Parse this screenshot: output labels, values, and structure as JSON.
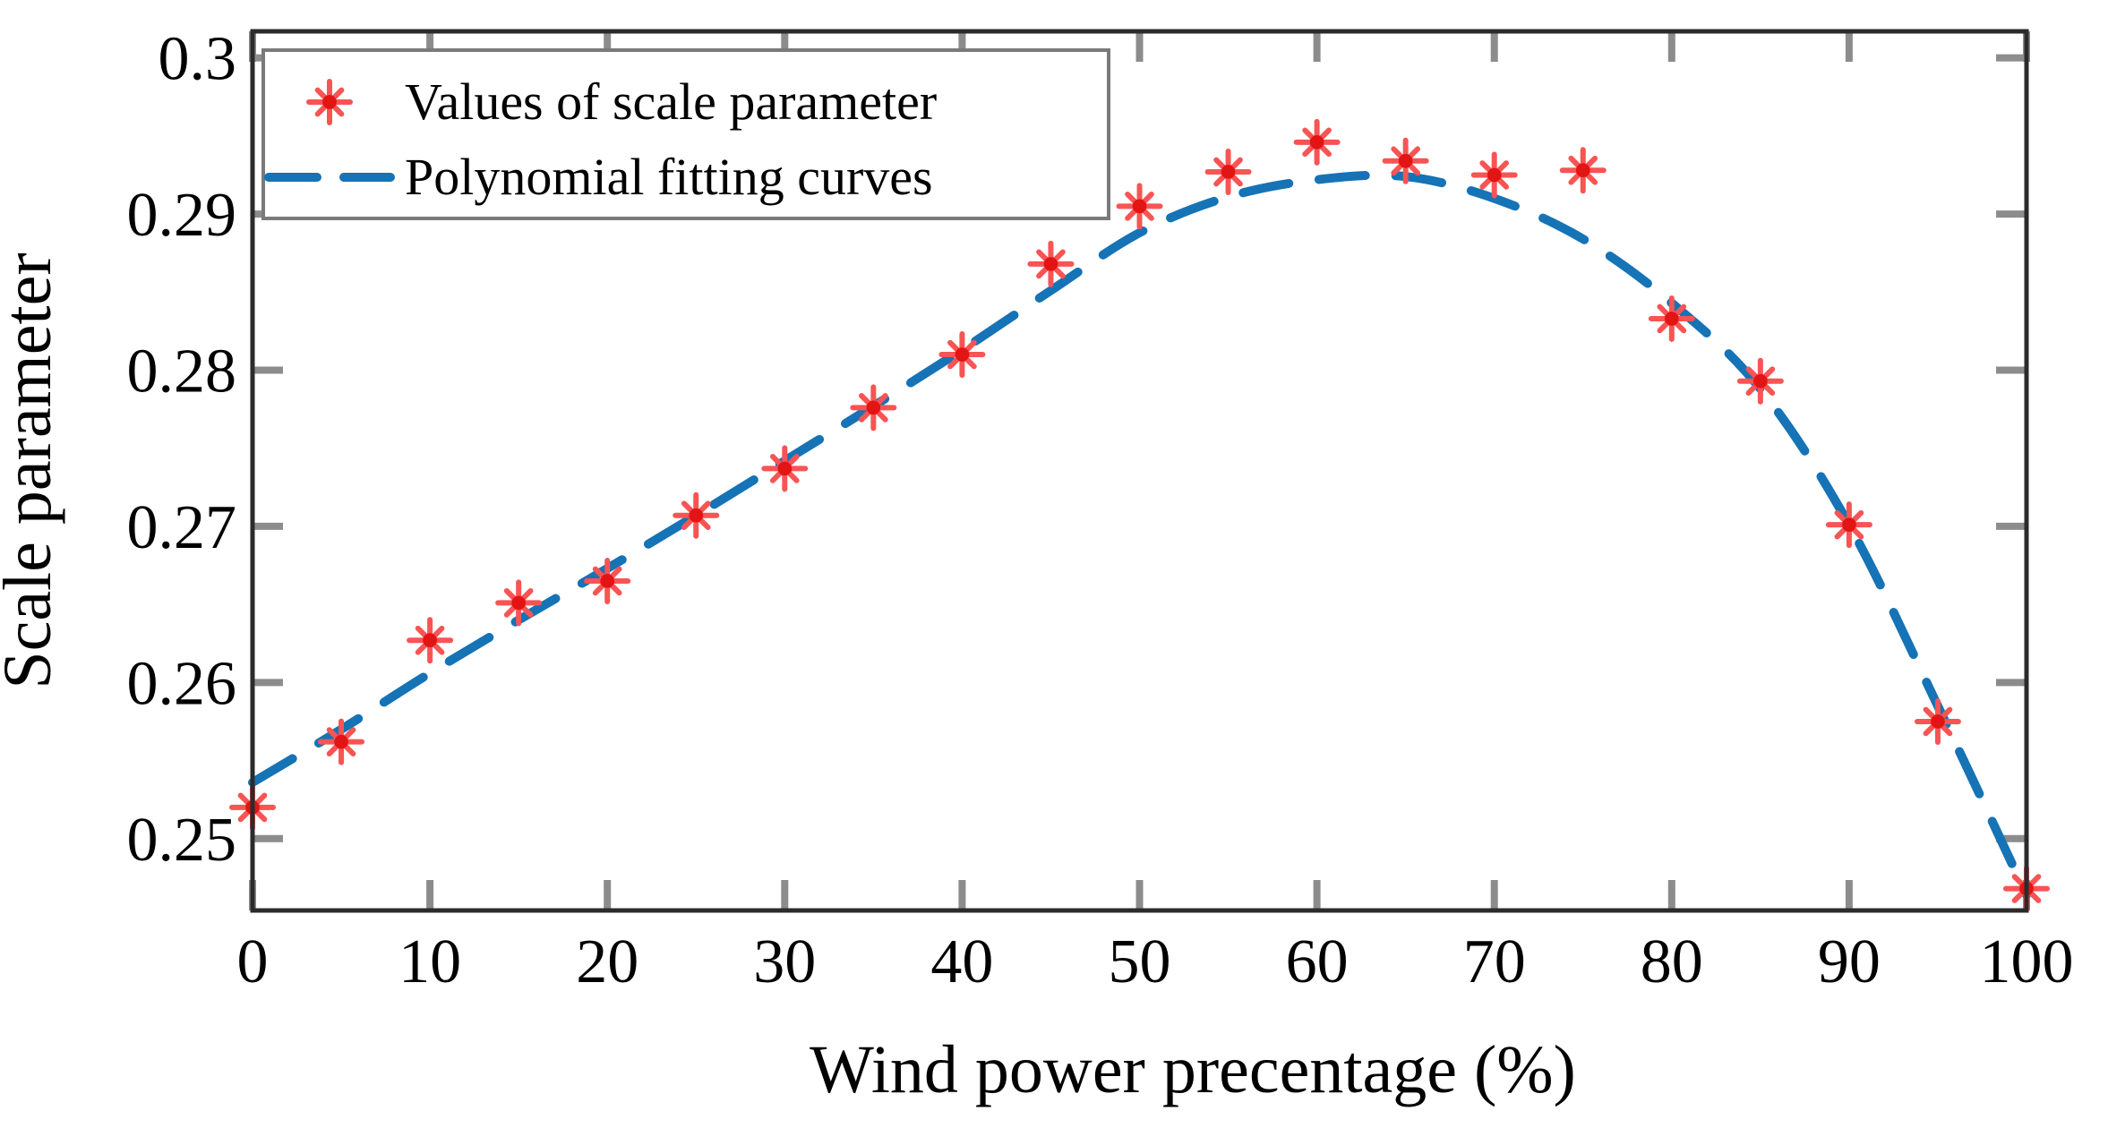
{
  "figure": {
    "background": "#ffffff",
    "frame_color": "#2b2b2b",
    "tick_color": "#8c8c8c",
    "text_color": "#000000"
  },
  "chart_data": {
    "type": "scatter",
    "title": "",
    "xlabel": "Wind power precentage (%)",
    "ylabel": "Scale parameter",
    "xlim": [
      0,
      100
    ],
    "ylim": [
      0.2454,
      0.3017
    ],
    "xticks": [
      0,
      10,
      20,
      30,
      40,
      50,
      60,
      70,
      80,
      90,
      100
    ],
    "xtick_labels": [
      "0",
      "10",
      "20",
      "30",
      "40",
      "50",
      "60",
      "70",
      "80",
      "90",
      "100"
    ],
    "yticks": [
      0.25,
      0.26,
      0.27,
      0.28,
      0.29,
      0.3
    ],
    "ytick_labels": [
      "0.25",
      "0.26",
      "0.27",
      "0.28",
      "0.29",
      "0.3"
    ],
    "grid": false,
    "legend_position": "top-left",
    "series": [
      {
        "name": "Values of scale parameter",
        "type": "scatter",
        "marker": "asterisk",
        "color": "#f85454",
        "core_color": "#e21414",
        "x": [
          0,
          5,
          10,
          15,
          20,
          25,
          30,
          35,
          40,
          45,
          50,
          55,
          60,
          65,
          70,
          75,
          80,
          85,
          90,
          95,
          100
        ],
        "y": [
          0.252,
          0.2562,
          0.2627,
          0.2651,
          0.2665,
          0.2707,
          0.2737,
          0.2776,
          0.281,
          0.2868,
          0.2905,
          0.2927,
          0.2946,
          0.2934,
          0.2925,
          0.2928,
          0.2833,
          0.2793,
          0.2701,
          0.2575,
          0.2468
        ]
      },
      {
        "name": "Polynomial fitting curves",
        "type": "line",
        "linestyle": "dashed",
        "color": "#1573b6",
        "x": [
          0,
          5,
          10,
          15,
          20,
          25,
          30,
          35,
          40,
          45,
          50,
          55,
          60,
          65,
          70,
          75,
          80,
          85,
          90,
          95,
          100
        ],
        "y": [
          0.2536,
          0.257,
          0.2606,
          0.264,
          0.2673,
          0.2707,
          0.2742,
          0.2777,
          0.2813,
          0.2851,
          0.2888,
          0.2911,
          0.2922,
          0.2924,
          0.291,
          0.2884,
          0.2843,
          0.2788,
          0.2701,
          0.2585,
          0.2464
        ]
      }
    ]
  }
}
